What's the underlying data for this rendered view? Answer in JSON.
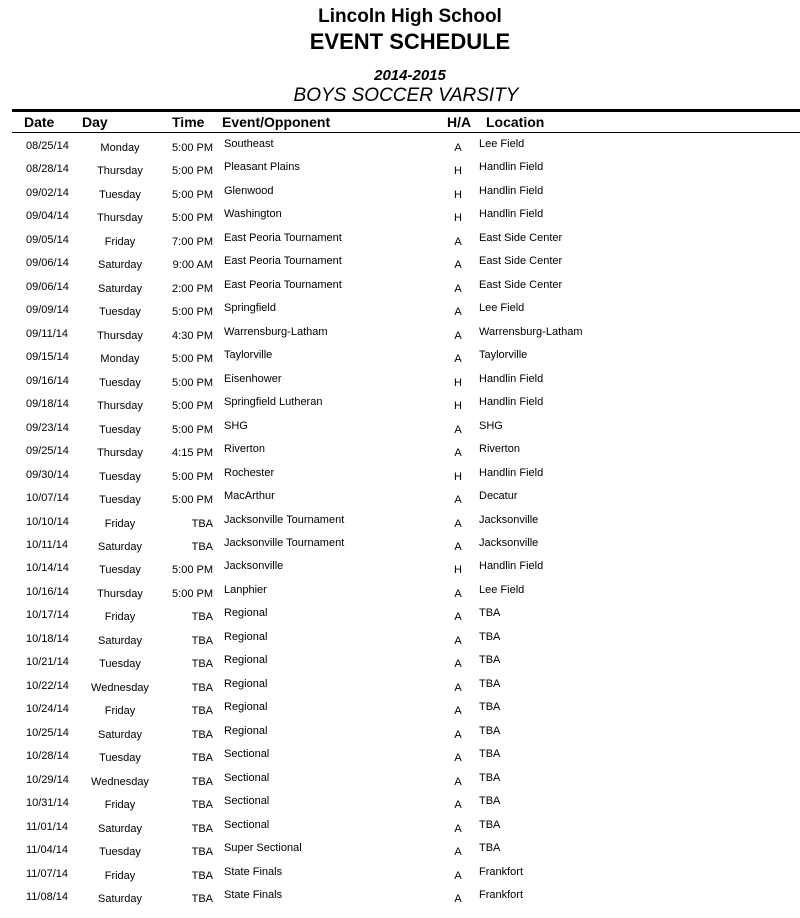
{
  "header": {
    "school": "Lincoln High School",
    "title": "EVENT SCHEDULE",
    "season": "2014-2015",
    "team": "BOYS SOCCER VARSITY"
  },
  "columns": {
    "date": "Date",
    "day": "Day",
    "time": "Time",
    "event": "Event/Opponent",
    "ha": "H/A",
    "location": "Location"
  },
  "rows": [
    {
      "date": "08/25/14",
      "day": "Monday",
      "time": "5:00 PM",
      "event": "Southeast",
      "ha": "A",
      "location": "Lee Field"
    },
    {
      "date": "08/28/14",
      "day": "Thursday",
      "time": "5:00 PM",
      "event": "Pleasant Plains",
      "ha": "H",
      "location": "Handlin Field"
    },
    {
      "date": "09/02/14",
      "day": "Tuesday",
      "time": "5:00 PM",
      "event": "Glenwood",
      "ha": "H",
      "location": "Handlin Field"
    },
    {
      "date": "09/04/14",
      "day": "Thursday",
      "time": "5:00 PM",
      "event": "Washington",
      "ha": "H",
      "location": "Handlin Field"
    },
    {
      "date": "09/05/14",
      "day": "Friday",
      "time": "7:00 PM",
      "event": "East Peoria Tournament",
      "ha": "A",
      "location": "East Side Center"
    },
    {
      "date": "09/06/14",
      "day": "Saturday",
      "time": "9:00 AM",
      "event": "East Peoria Tournament",
      "ha": "A",
      "location": "East Side Center"
    },
    {
      "date": "09/06/14",
      "day": "Saturday",
      "time": "2:00 PM",
      "event": "East Peoria Tournament",
      "ha": "A",
      "location": "East Side Center"
    },
    {
      "date": "09/09/14",
      "day": "Tuesday",
      "time": "5:00 PM",
      "event": "Springfield",
      "ha": "A",
      "location": "Lee Field"
    },
    {
      "date": "09/11/14",
      "day": "Thursday",
      "time": "4:30 PM",
      "event": "Warrensburg-Latham",
      "ha": "A",
      "location": "Warrensburg-Latham"
    },
    {
      "date": "09/15/14",
      "day": "Monday",
      "time": "5:00 PM",
      "event": "Taylorville",
      "ha": "A",
      "location": "Taylorville"
    },
    {
      "date": "09/16/14",
      "day": "Tuesday",
      "time": "5:00 PM",
      "event": "Eisenhower",
      "ha": "H",
      "location": "Handlin Field"
    },
    {
      "date": "09/18/14",
      "day": "Thursday",
      "time": "5:00 PM",
      "event": "Springfield Lutheran",
      "ha": "H",
      "location": "Handlin Field"
    },
    {
      "date": "09/23/14",
      "day": "Tuesday",
      "time": "5:00 PM",
      "event": "SHG",
      "ha": "A",
      "location": "SHG"
    },
    {
      "date": "09/25/14",
      "day": "Thursday",
      "time": "4:15 PM",
      "event": "Riverton",
      "ha": "A",
      "location": "Riverton"
    },
    {
      "date": "09/30/14",
      "day": "Tuesday",
      "time": "5:00 PM",
      "event": "Rochester",
      "ha": "H",
      "location": "Handlin Field"
    },
    {
      "date": "10/07/14",
      "day": "Tuesday",
      "time": "5:00 PM",
      "event": "MacArthur",
      "ha": "A",
      "location": "Decatur"
    },
    {
      "date": "10/10/14",
      "day": "Friday",
      "time": "TBA",
      "event": "Jacksonville Tournament",
      "ha": "A",
      "location": "Jacksonville"
    },
    {
      "date": "10/11/14",
      "day": "Saturday",
      "time": "TBA",
      "event": "Jacksonville Tournament",
      "ha": "A",
      "location": "Jacksonville"
    },
    {
      "date": "10/14/14",
      "day": "Tuesday",
      "time": "5:00 PM",
      "event": "Jacksonville",
      "ha": "H",
      "location": "Handlin Field"
    },
    {
      "date": "10/16/14",
      "day": "Thursday",
      "time": "5:00 PM",
      "event": "Lanphier",
      "ha": "A",
      "location": "Lee Field"
    },
    {
      "date": "10/17/14",
      "day": "Friday",
      "time": "TBA",
      "event": "Regional",
      "ha": "A",
      "location": "TBA"
    },
    {
      "date": "10/18/14",
      "day": "Saturday",
      "time": "TBA",
      "event": "Regional",
      "ha": "A",
      "location": "TBA"
    },
    {
      "date": "10/21/14",
      "day": "Tuesday",
      "time": "TBA",
      "event": "Regional",
      "ha": "A",
      "location": "TBA"
    },
    {
      "date": "10/22/14",
      "day": "Wednesday",
      "time": "TBA",
      "event": "Regional",
      "ha": "A",
      "location": "TBA"
    },
    {
      "date": "10/24/14",
      "day": "Friday",
      "time": "TBA",
      "event": "Regional",
      "ha": "A",
      "location": "TBA"
    },
    {
      "date": "10/25/14",
      "day": "Saturday",
      "time": "TBA",
      "event": "Regional",
      "ha": "A",
      "location": "TBA"
    },
    {
      "date": "10/28/14",
      "day": "Tuesday",
      "time": "TBA",
      "event": "Sectional",
      "ha": "A",
      "location": "TBA"
    },
    {
      "date": "10/29/14",
      "day": "Wednesday",
      "time": "TBA",
      "event": "Sectional",
      "ha": "A",
      "location": "TBA"
    },
    {
      "date": "10/31/14",
      "day": "Friday",
      "time": "TBA",
      "event": "Sectional",
      "ha": "A",
      "location": "TBA"
    },
    {
      "date": "11/01/14",
      "day": "Saturday",
      "time": "TBA",
      "event": "Sectional",
      "ha": "A",
      "location": "TBA"
    },
    {
      "date": "11/04/14",
      "day": "Tuesday",
      "time": "TBA",
      "event": "Super Sectional",
      "ha": "A",
      "location": "TBA"
    },
    {
      "date": "11/07/14",
      "day": "Friday",
      "time": "TBA",
      "event": "State Finals",
      "ha": "A",
      "location": "Frankfort"
    },
    {
      "date": "11/08/14",
      "day": "Saturday",
      "time": "TBA",
      "event": "State Finals",
      "ha": "A",
      "location": "Frankfort"
    }
  ]
}
